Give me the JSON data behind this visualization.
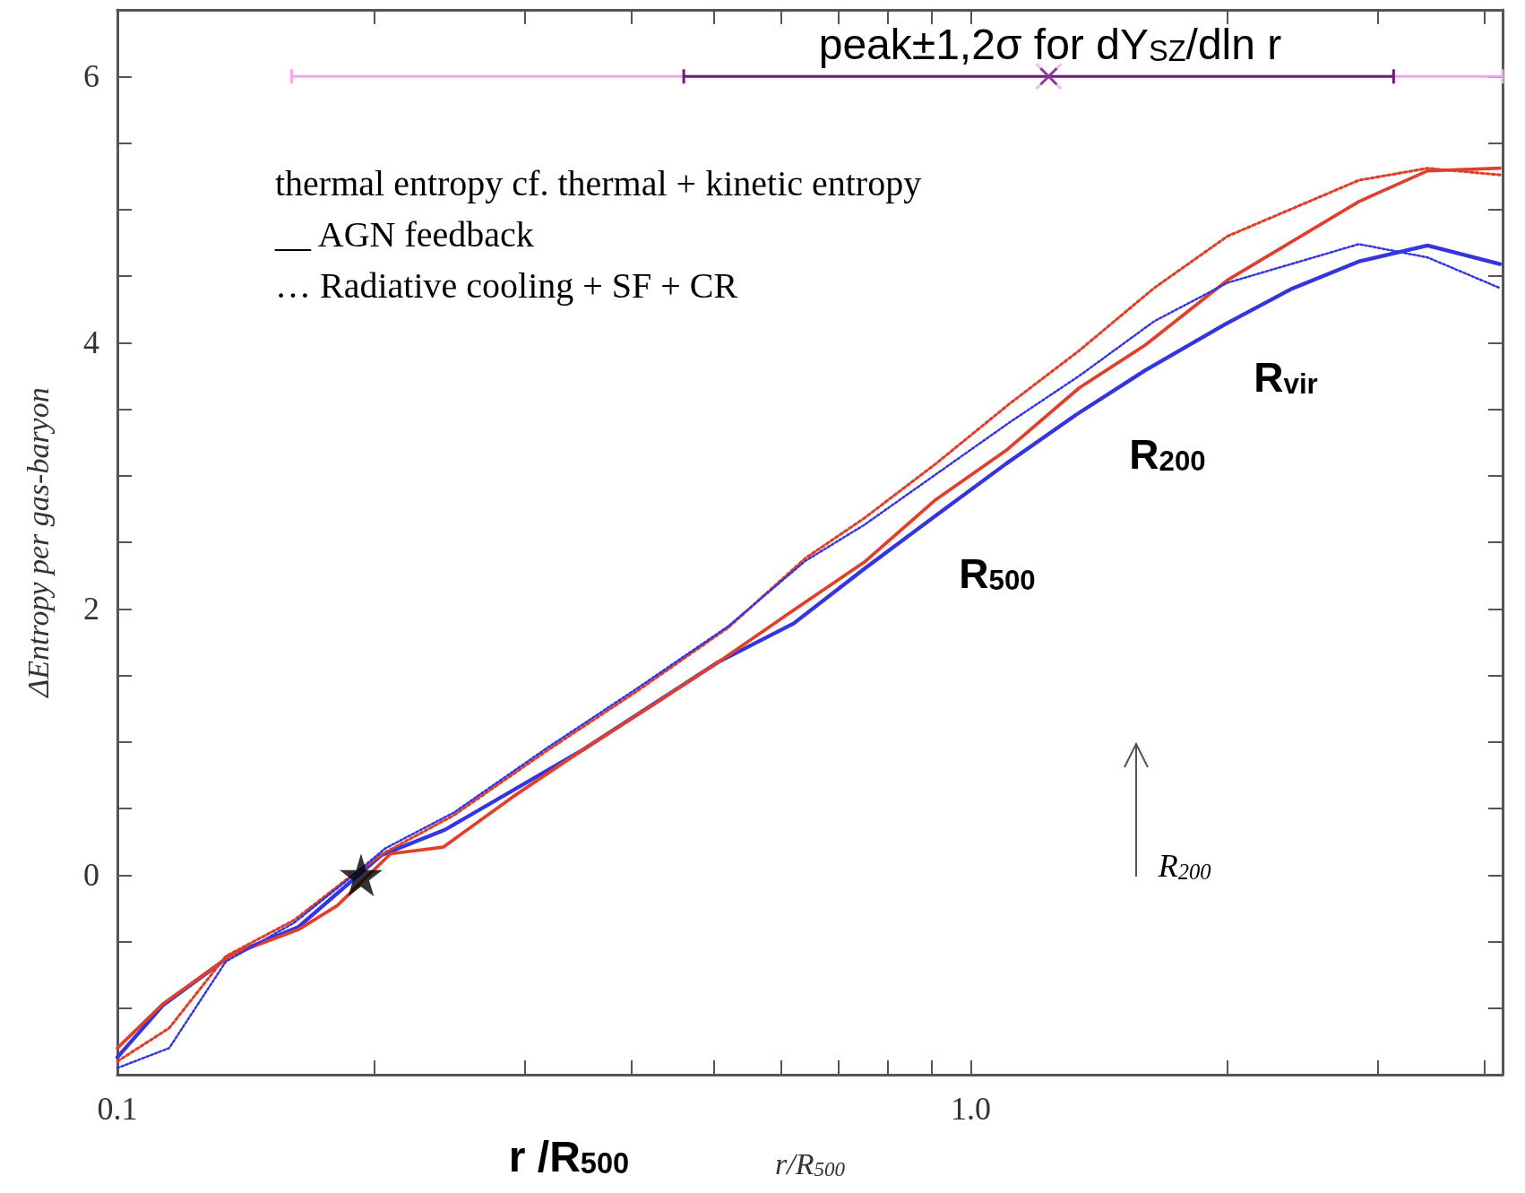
{
  "chart_data": {
    "type": "line",
    "xlabel": "r/R$_{500}$",
    "ylabel": "ΔEntropy per gas-baryon",
    "log": "x",
    "xlim": [
      0.1,
      4.2
    ],
    "ylim": [
      -1.5,
      6.5
    ],
    "xticks": [
      0.1,
      {
        "value": 0.2,
        "label": null
      },
      {
        "value": 0.3,
        "label": null
      },
      {
        "value": 0.4,
        "label": null
      },
      {
        "value": 0.5,
        "label": null
      },
      {
        "value": 0.6,
        "label": null
      },
      {
        "value": 0.7,
        "label": null
      },
      {
        "value": 0.8,
        "label": null
      },
      {
        "value": 0.9,
        "label": null
      },
      {
        "value": 1,
        "label": "1.0"
      },
      {
        "value": 2,
        "label": null
      },
      {
        "value": 3,
        "label": null
      },
      {
        "value": 4,
        "label": null
      }
    ],
    "yticks": [
      {
        "value": -1,
        "label": null
      },
      {
        "value": -0.5,
        "label": null
      },
      0,
      {
        "value": 0.5,
        "label": null
      },
      {
        "value": 1,
        "label": null
      },
      {
        "value": 1.5,
        "label": null
      },
      2,
      {
        "value": 2.5,
        "label": null
      },
      {
        "value": 3,
        "label": null
      },
      {
        "value": 3.5,
        "label": null
      },
      4,
      {
        "value": 4.5,
        "label": null
      },
      {
        "value": 5,
        "label": null
      },
      {
        "value": 5.5,
        "label": null
      },
      6
    ],
    "marker": "none",
    "grid": false,
    "series": [
      {
        "color": "#3535e0",
        "line_style": "solid",
        "x": [
          0.1,
          0.113,
          0.136,
          0.163,
          0.204,
          0.242,
          0.351,
          0.506,
          0.62,
          0.75,
          0.91,
          1.1,
          1.33,
          1.6,
          1.99,
          2.37,
          2.85,
          3.43,
          4.17
        ],
        "values": [
          -1.37,
          -0.98,
          -0.6,
          -0.39,
          0.15,
          0.34,
          0.94,
          1.6,
          1.89,
          2.3,
          2.7,
          3.09,
          3.46,
          3.79,
          4.14,
          4.4,
          4.61,
          4.73,
          4.59
        ]
      },
      {
        "color": "#e0402a",
        "line_style": "solid",
        "x": [
          0.1,
          0.113,
          0.136,
          0.163,
          0.181,
          0.209,
          0.241,
          0.291,
          0.351,
          0.427,
          0.506,
          0.62,
          0.75,
          0.91,
          1.1,
          1.34,
          1.6,
          2.0,
          2.85,
          3.43,
          4.17
        ],
        "values": [
          -1.3,
          -0.97,
          -0.6,
          -0.41,
          -0.23,
          0.16,
          0.21,
          0.59,
          0.94,
          1.29,
          1.6,
          1.99,
          2.35,
          2.82,
          3.19,
          3.66,
          3.98,
          4.47,
          5.06,
          5.29,
          5.31
        ]
      },
      {
        "color": "#e0402a",
        "line_style": "dotted",
        "x": [
          0.1,
          0.115,
          0.134,
          0.161,
          0.185,
          0.206,
          0.248,
          0.318,
          0.406,
          0.52,
          0.64,
          0.75,
          0.91,
          1.11,
          1.34,
          1.64,
          2.0,
          2.85,
          3.43,
          4.17
        ],
        "values": [
          -1.4,
          -1.15,
          -0.61,
          -0.34,
          -0.04,
          0.17,
          0.45,
          0.93,
          1.38,
          1.86,
          2.38,
          2.68,
          3.09,
          3.54,
          3.94,
          4.41,
          4.8,
          5.22,
          5.31,
          5.26
        ]
      },
      {
        "color": "#3535e0",
        "line_style": "dotted",
        "x": [
          0.1,
          0.115,
          0.134,
          0.161,
          0.185,
          0.206,
          0.248,
          0.318,
          0.406,
          0.52,
          0.64,
          0.75,
          0.91,
          1.11,
          1.34,
          1.64,
          2.0,
          2.85,
          3.43,
          4.17
        ],
        "values": [
          -1.45,
          -1.3,
          -0.65,
          -0.36,
          -0.05,
          0.2,
          0.47,
          0.95,
          1.4,
          1.87,
          2.36,
          2.63,
          3.01,
          3.4,
          3.75,
          4.16,
          4.45,
          4.74,
          4.64,
          4.41
        ]
      },
      {
        "type": "scatter",
        "color": "#000000",
        "marker": "star",
        "x": [
          0.193
        ],
        "values": [
          0
        ]
      },
      {
        "type": "scatter",
        "color": "#f2a6f0",
        "marker": "cross",
        "x": [
          1.234
        ],
        "values": [
          6
        ],
        "xerrors": [
          [
            0.16,
            4.2
          ]
        ]
      },
      {
        "type": "scatter",
        "color": "#6b1f7b",
        "marker": "cross",
        "x": [
          1.234
        ],
        "values": [
          6
        ],
        "xerrors": [
          [
            0.461,
            3.13
          ]
        ]
      }
    ],
    "annotations": [
      "thermal entropy cf. thermal + kinetic entropy",
      "__ AGN feedback",
      "… Radiative cooling + SF + CR",
      "r /R$_{500}$",
      "peak±1,2σ for dY$_{SZ}$/dln r",
      "R$_{500}$",
      "R$_{200}$",
      "R$_{vir}$",
      "R$_{200}$"
    ]
  }
}
